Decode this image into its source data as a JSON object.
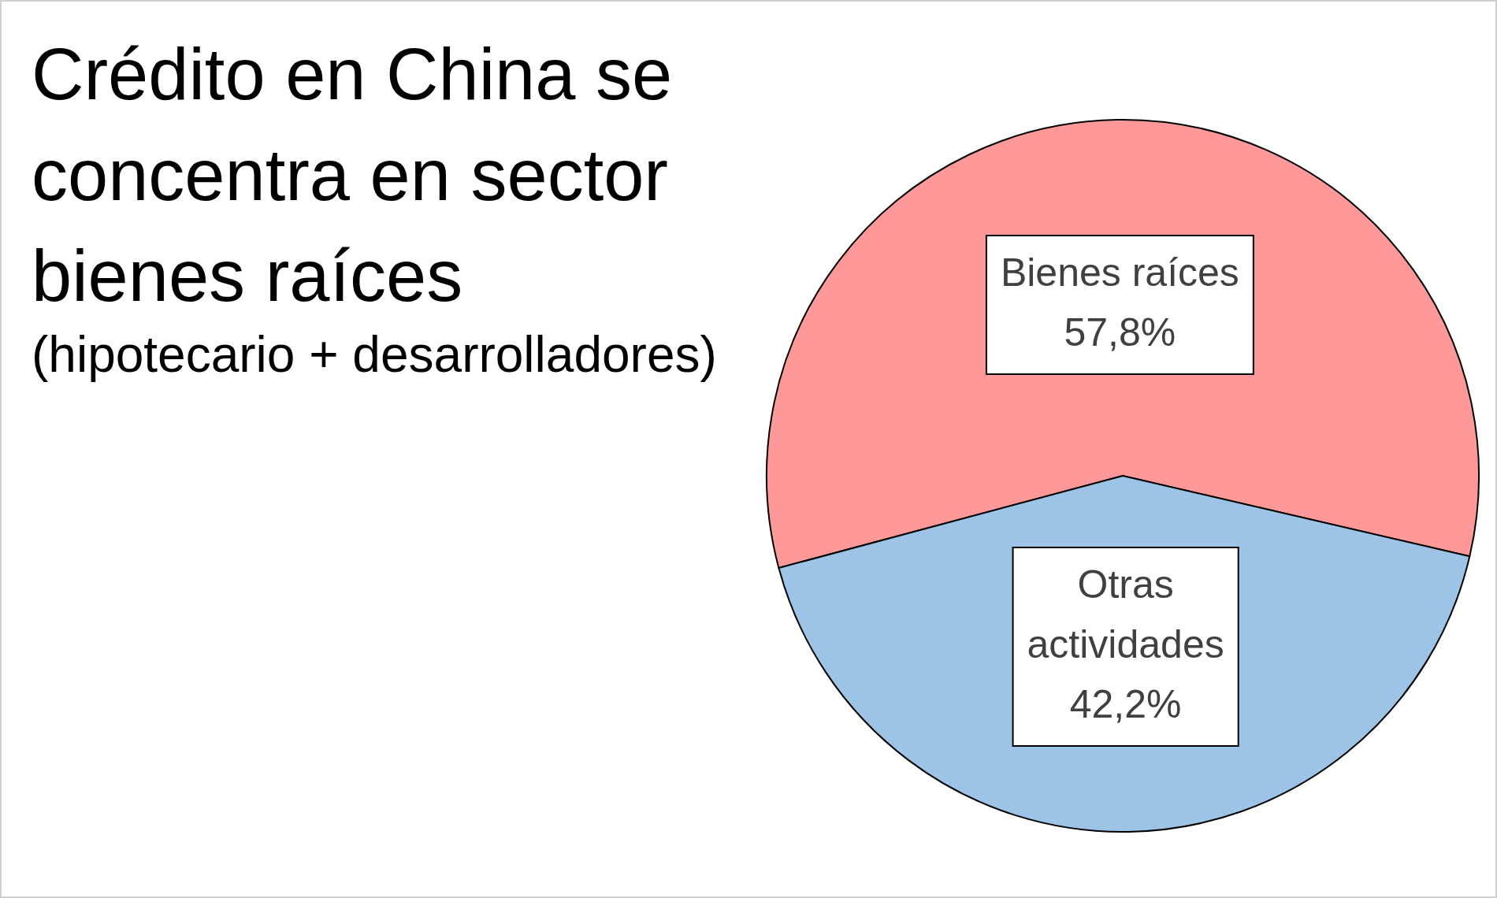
{
  "chart_data": {
    "type": "pie",
    "title": "Crédito en China se concentra en sector bienes raíces",
    "subtitle": "(hipotecario + desarrolladores)",
    "categories": [
      "Bienes raíces",
      "Otras actividades"
    ],
    "values": [
      57.8,
      42.2
    ],
    "colors": [
      "#ff9999",
      "#9dc3e6"
    ],
    "value_labels": [
      "57,8%",
      "42,2%"
    ]
  }
}
